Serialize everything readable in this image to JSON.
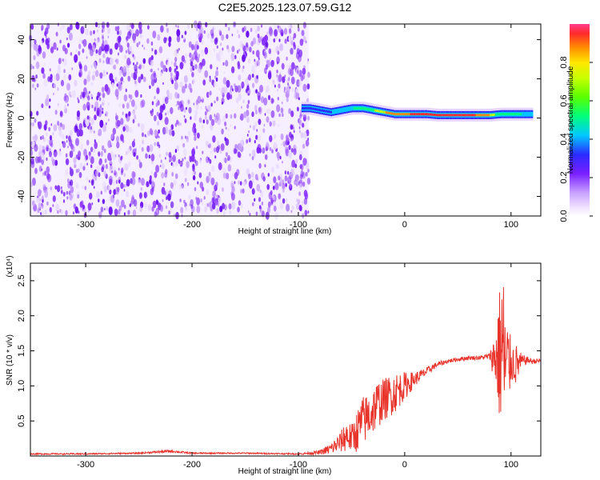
{
  "title": "C2E5.2025.123.07.59.G12",
  "chart_data": [
    {
      "type": "heatmap",
      "xlabel": "Height of straight line (km)",
      "ylabel": "Frequency (Hz)",
      "xlim": [
        -352,
        128
      ],
      "ylim": [
        -50,
        48
      ],
      "xticks": [
        -300,
        -200,
        -100,
        0,
        100
      ],
      "yticks": [
        -40,
        -20,
        0,
        20,
        40
      ],
      "noise_region_x": [
        -352,
        -90
      ],
      "signal_band": {
        "x": [
          -97,
          -90,
          -80,
          -70,
          -60,
          -50,
          -40,
          -30,
          -20,
          -10,
          0,
          10,
          20,
          30,
          40,
          50,
          60,
          70,
          80,
          90,
          100,
          110,
          120
        ],
        "freq": [
          5,
          5,
          4,
          3,
          4,
          5,
          5,
          4,
          3,
          2,
          2,
          2,
          2,
          1.5,
          1.5,
          1.5,
          1.5,
          1.5,
          1.5,
          2,
          2,
          2,
          2
        ],
        "peak_amplitude": [
          0.35,
          0.4,
          0.4,
          0.45,
          0.5,
          0.55,
          0.65,
          0.7,
          0.8,
          0.85,
          0.9,
          0.95,
          1.0,
          1.0,
          1.0,
          1.0,
          0.95,
          0.9,
          0.8,
          0.6,
          0.6,
          0.55,
          0.5
        ]
      },
      "colorbar": {
        "label": "Normalized spectral amplitude",
        "ticks": [
          0.0,
          0.2,
          0.4,
          0.6,
          0.8
        ],
        "range": [
          0,
          1
        ]
      }
    },
    {
      "type": "line",
      "xlabel": "Height of straight line (km)",
      "ylabel": "SNR (10 * v/v)",
      "multiplier": "(x10⁴)",
      "xlim": [
        -352,
        128
      ],
      "ylim": [
        0,
        2.75
      ],
      "xticks": [
        -300,
        -200,
        -100,
        0,
        100
      ],
      "yticks": [
        0.5,
        1.0,
        1.5,
        2.0,
        2.5
      ],
      "series": [
        {
          "color": "#e8332a",
          "x": [
            -352,
            -300,
            -250,
            -220,
            -200,
            -150,
            -100,
            -80,
            -70,
            -60,
            -55,
            -50,
            -45,
            -40,
            -35,
            -30,
            -25,
            -20,
            -15,
            -10,
            -5,
            0,
            5,
            10,
            15,
            20,
            30,
            40,
            50,
            60,
            70,
            80,
            85,
            90,
            92,
            95,
            100,
            105,
            110,
            115,
            120,
            128
          ],
          "y": [
            0.03,
            0.03,
            0.04,
            0.07,
            0.04,
            0.04,
            0.03,
            0.05,
            0.1,
            0.2,
            0.3,
            0.25,
            0.35,
            0.5,
            0.55,
            0.65,
            0.75,
            0.8,
            0.85,
            0.9,
            0.95,
            1.0,
            1.05,
            1.1,
            1.15,
            1.2,
            1.3,
            1.35,
            1.38,
            1.4,
            1.4,
            1.42,
            1.4,
            1.45,
            1.6,
            1.2,
            1.35,
            1.3,
            1.35,
            1.37,
            1.35,
            1.36
          ],
          "spread": [
            0.01,
            0.01,
            0.01,
            0.02,
            0.01,
            0.01,
            0.01,
            0.03,
            0.08,
            0.15,
            0.25,
            0.2,
            0.3,
            0.35,
            0.35,
            0.35,
            0.35,
            0.3,
            0.3,
            0.3,
            0.25,
            0.2,
            0.15,
            0.1,
            0.08,
            0.06,
            0.04,
            0.03,
            0.03,
            0.03,
            0.03,
            0.05,
            0.4,
            1.1,
            1.2,
            1.0,
            0.3,
            0.3,
            0.1,
            0.05,
            0.04,
            0.03
          ]
        }
      ]
    }
  ]
}
